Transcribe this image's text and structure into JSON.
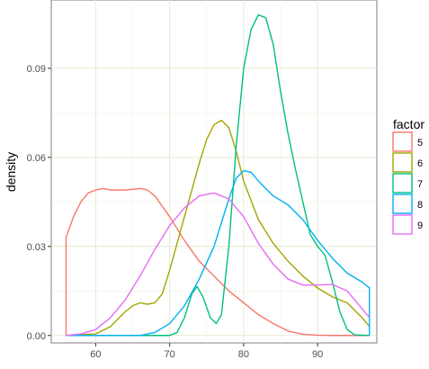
{
  "chart_data": {
    "type": "line",
    "xlabel": "",
    "ylabel": "density",
    "xlim": [
      54,
      98
    ],
    "ylim": [
      -0.0025,
      0.113
    ],
    "x_ticks": [
      60,
      70,
      80,
      90
    ],
    "x_tick_labels": [
      "60",
      "70",
      "80",
      "90"
    ],
    "y_ticks": [
      0.0,
      0.03,
      0.06,
      0.09
    ],
    "y_tick_labels": [
      "0.00",
      "0.03",
      "0.06",
      "0.09"
    ],
    "grid": true,
    "legend": {
      "title": "factor",
      "position": "right"
    },
    "series": [
      {
        "name": "5",
        "color": "#F8766D",
        "points": [
          [
            56,
            0
          ],
          [
            56,
            0.033
          ],
          [
            57,
            0.04
          ],
          [
            58,
            0.045
          ],
          [
            59,
            0.048
          ],
          [
            60,
            0.049
          ],
          [
            61,
            0.0495
          ],
          [
            62,
            0.049
          ],
          [
            64,
            0.049
          ],
          [
            66,
            0.0495
          ],
          [
            67,
            0.049
          ],
          [
            68,
            0.047
          ],
          [
            70,
            0.04
          ],
          [
            72,
            0.032
          ],
          [
            74,
            0.025
          ],
          [
            76,
            0.02
          ],
          [
            78,
            0.015
          ],
          [
            80,
            0.011
          ],
          [
            82,
            0.007
          ],
          [
            84,
            0.004
          ],
          [
            86,
            0.0015
          ],
          [
            88,
            0.0004
          ],
          [
            90,
            0.0001
          ],
          [
            92,
            0
          ],
          [
            97,
            0
          ]
        ]
      },
      {
        "name": "6",
        "color": "#A3A500",
        "points": [
          [
            56,
            0
          ],
          [
            60,
            0.0005
          ],
          [
            62,
            0.003
          ],
          [
            64,
            0.008
          ],
          [
            65,
            0.01
          ],
          [
            66,
            0.011
          ],
          [
            67,
            0.0105
          ],
          [
            68,
            0.011
          ],
          [
            69,
            0.014
          ],
          [
            70,
            0.022
          ],
          [
            72,
            0.04
          ],
          [
            74,
            0.058
          ],
          [
            75,
            0.066
          ],
          [
            76,
            0.071
          ],
          [
            77,
            0.0725
          ],
          [
            78,
            0.07
          ],
          [
            79,
            0.062
          ],
          [
            80,
            0.052
          ],
          [
            82,
            0.039
          ],
          [
            84,
            0.031
          ],
          [
            86,
            0.025
          ],
          [
            88,
            0.02
          ],
          [
            90,
            0.016
          ],
          [
            92,
            0.013
          ],
          [
            94,
            0.011
          ],
          [
            96,
            0.006
          ],
          [
            97,
            0.003
          ]
        ]
      },
      {
        "name": "7",
        "color": "#00BF7D",
        "points": [
          [
            56,
            0
          ],
          [
            70,
            0
          ],
          [
            71,
            0.001
          ],
          [
            72,
            0.006
          ],
          [
            73,
            0.014
          ],
          [
            73.7,
            0.0165
          ],
          [
            74.5,
            0.013
          ],
          [
            75.5,
            0.006
          ],
          [
            76.3,
            0.004
          ],
          [
            77,
            0.007
          ],
          [
            78,
            0.03
          ],
          [
            79,
            0.064
          ],
          [
            80,
            0.09
          ],
          [
            81,
            0.103
          ],
          [
            82,
            0.108
          ],
          [
            83,
            0.107
          ],
          [
            84,
            0.098
          ],
          [
            85,
            0.082
          ],
          [
            86,
            0.068
          ],
          [
            87,
            0.056
          ],
          [
            88,
            0.045
          ],
          [
            89,
            0.034
          ],
          [
            90,
            0.03
          ],
          [
            91,
            0.027
          ],
          [
            92,
            0.018
          ],
          [
            93,
            0.008
          ],
          [
            94,
            0.002
          ],
          [
            95,
            0.0002
          ],
          [
            97,
            0
          ]
        ]
      },
      {
        "name": "8",
        "color": "#00B0F6",
        "points": [
          [
            56,
            0
          ],
          [
            66,
            0
          ],
          [
            68,
            0.001
          ],
          [
            70,
            0.004
          ],
          [
            72,
            0.01
          ],
          [
            74,
            0.019
          ],
          [
            76,
            0.03
          ],
          [
            78,
            0.046
          ],
          [
            79,
            0.053
          ],
          [
            80,
            0.0555
          ],
          [
            81,
            0.055
          ],
          [
            82,
            0.052
          ],
          [
            84,
            0.047
          ],
          [
            86,
            0.044
          ],
          [
            88,
            0.039
          ],
          [
            90,
            0.032
          ],
          [
            92,
            0.026
          ],
          [
            94,
            0.021
          ],
          [
            96,
            0.018
          ],
          [
            97,
            0.016
          ],
          [
            97,
            0
          ]
        ]
      },
      {
        "name": "9",
        "color": "#E76BF3",
        "points": [
          [
            56,
            0
          ],
          [
            58,
            0.0005
          ],
          [
            60,
            0.002
          ],
          [
            62,
            0.006
          ],
          [
            64,
            0.012
          ],
          [
            66,
            0.02
          ],
          [
            68,
            0.029
          ],
          [
            70,
            0.037
          ],
          [
            72,
            0.043
          ],
          [
            74,
            0.047
          ],
          [
            76,
            0.048
          ],
          [
            78,
            0.046
          ],
          [
            80,
            0.04
          ],
          [
            82,
            0.031
          ],
          [
            84,
            0.024
          ],
          [
            86,
            0.019
          ],
          [
            88,
            0.017
          ],
          [
            90,
            0.017
          ],
          [
            92,
            0.0172
          ],
          [
            94,
            0.015
          ],
          [
            96,
            0.009
          ],
          [
            97,
            0.006
          ]
        ]
      }
    ]
  }
}
